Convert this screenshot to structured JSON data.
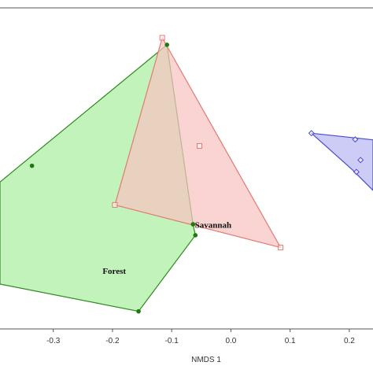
{
  "chart_data": {
    "type": "scatter",
    "title": "",
    "xlabel": "NMDS 1",
    "ylabel": "",
    "xlim": [
      -0.39,
      0.24
    ],
    "ylim": [
      -0.51,
      0.22
    ],
    "x_ticks": [
      -0.3,
      -0.2,
      -0.1,
      0.0,
      0.1,
      0.2
    ],
    "x_tick_labels": [
      "-0.3",
      "-0.2",
      "-0.1",
      "0.0",
      "0.1",
      "0.2"
    ],
    "grid": false,
    "series": [
      {
        "name": "Forest",
        "marker": "filled-circle",
        "fill_color": "#aaeea0",
        "stroke_color": "#2e8b1f",
        "marker_color": "#1d7a12",
        "hull": [
          [
            -0.39,
            -0.176
          ],
          [
            -0.108,
            0.136
          ],
          [
            -0.064,
            -0.272
          ],
          [
            -0.06,
            -0.297
          ],
          [
            -0.156,
            -0.47
          ],
          [
            -0.39,
            -0.408
          ]
        ],
        "points": [
          [
            -0.108,
            0.136
          ],
          [
            -0.336,
            -0.139
          ],
          [
            -0.064,
            -0.272
          ],
          [
            -0.06,
            -0.297
          ],
          [
            -0.156,
            -0.47
          ]
        ]
      },
      {
        "name": "Savannah",
        "marker": "open-square",
        "fill_color": "#f6c4c0",
        "stroke_color": "#e27a72",
        "marker_color": "#e27a72",
        "hull": [
          [
            -0.116,
            0.152
          ],
          [
            0.084,
            -0.325
          ],
          [
            -0.196,
            -0.228
          ]
        ],
        "points": [
          [
            -0.116,
            0.152
          ],
          [
            -0.053,
            -0.094
          ],
          [
            -0.196,
            -0.228
          ],
          [
            0.084,
            -0.325
          ]
        ]
      },
      {
        "name": "",
        "marker": "open-diamond",
        "fill_color": "#b9b9f2",
        "stroke_color": "#4a4ad0",
        "marker_color": "#4a4ad0",
        "hull": [
          [
            0.136,
            -0.065
          ],
          [
            0.24,
            -0.08
          ],
          [
            0.24,
            -0.195
          ],
          [
            0.205,
            -0.148
          ]
        ],
        "points": [
          [
            0.136,
            -0.065
          ],
          [
            0.21,
            -0.079
          ],
          [
            0.219,
            -0.126
          ],
          [
            0.212,
            -0.153
          ]
        ]
      }
    ],
    "annotations": [
      {
        "text": "Savannah",
        "x": -0.03,
        "y": -0.28
      },
      {
        "text": "Forest",
        "x": -0.197,
        "y": -0.385
      }
    ]
  }
}
